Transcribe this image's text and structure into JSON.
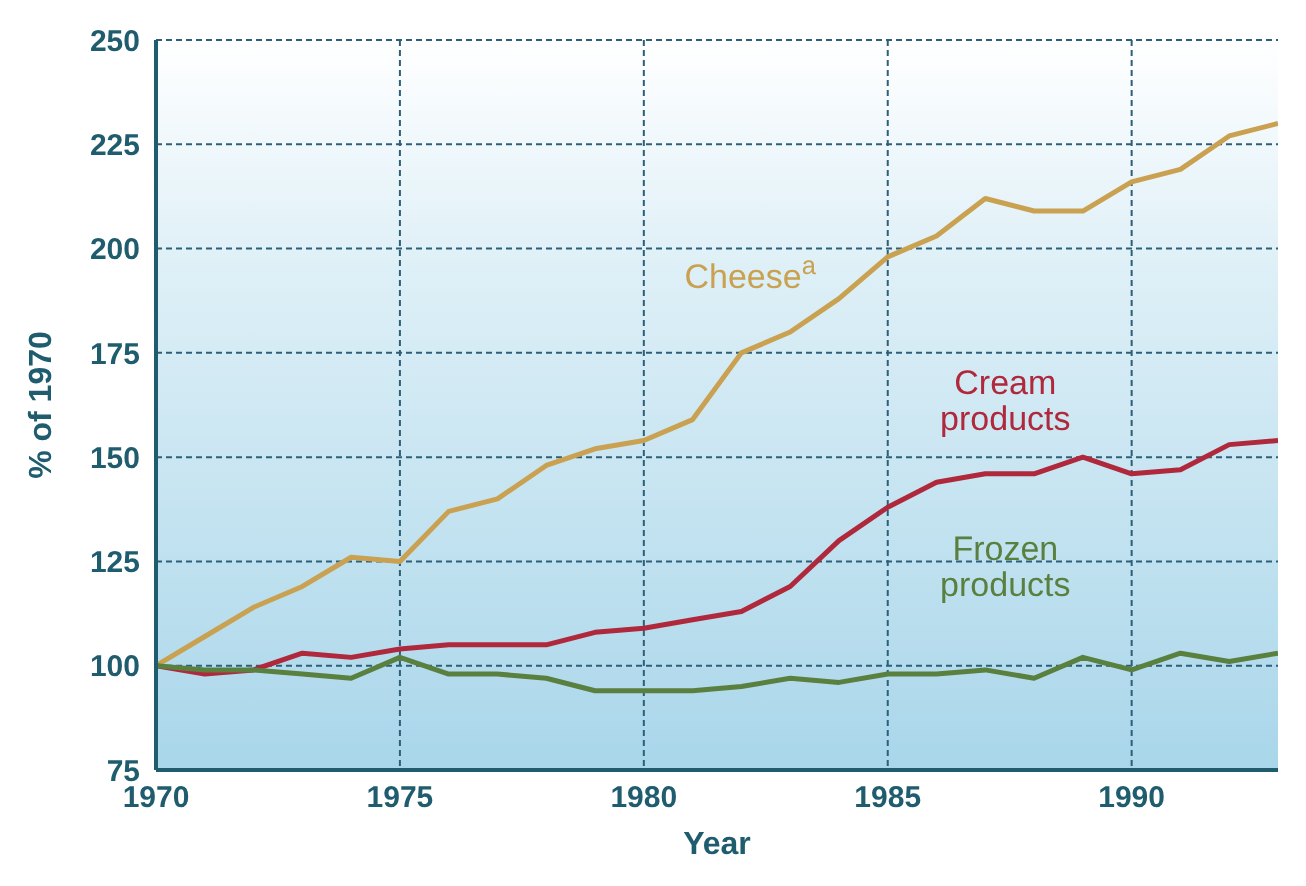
{
  "chart_data": {
    "type": "line",
    "xlabel": "Year",
    "ylabel": "% of 1970",
    "x": [
      1970,
      1971,
      1972,
      1973,
      1974,
      1975,
      1976,
      1977,
      1978,
      1979,
      1980,
      1981,
      1982,
      1983,
      1984,
      1985,
      1986,
      1987,
      1988,
      1989,
      1990,
      1991,
      1992,
      1993
    ],
    "series": [
      {
        "name": "Cheese$^{a}$",
        "color": "#c9a150",
        "values": [
          100,
          107,
          114,
          119,
          126,
          125,
          137,
          140,
          148,
          152,
          154,
          159,
          175,
          180,
          188,
          198,
          203,
          212,
          209,
          209,
          216,
          219,
          227,
          230
        ]
      },
      {
        "name": "Cream products",
        "color": "#b0283c",
        "values": [
          100,
          98,
          99,
          103,
          102,
          104,
          105,
          105,
          105,
          108,
          109,
          111,
          113,
          119,
          130,
          138,
          144,
          146,
          146,
          150,
          146,
          147,
          153,
          154
        ]
      },
      {
        "name": "Frozen products",
        "color": "#5a8040",
        "values": [
          100,
          99,
          99,
          98,
          97,
          102,
          98,
          98,
          97,
          94,
          94,
          94,
          95,
          97,
          96,
          98,
          98,
          99,
          97,
          102,
          99,
          103,
          101,
          103
        ]
      }
    ],
    "xlim": [
      1970,
      1993
    ],
    "xticks": [
      1970,
      1975,
      1980,
      1985,
      1990
    ],
    "ylim": [
      75,
      250
    ],
    "yticks": [
      75,
      100,
      125,
      150,
      175,
      200,
      225,
      250
    ],
    "grid": true,
    "marker": "none",
    "line_style": "solid"
  }
}
